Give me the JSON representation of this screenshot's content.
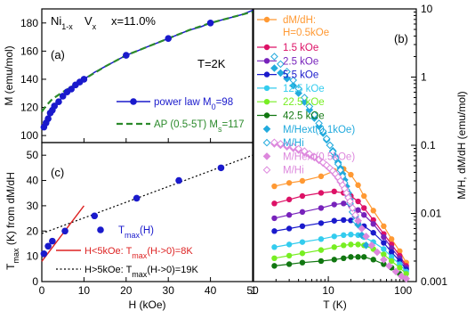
{
  "chart_data": [
    {
      "panel": "(a)",
      "type": "line",
      "material_label": {
        "base": "Ni",
        "sub1": "1-x",
        "mid": "V",
        "sub2": "x"
      },
      "composition": "x=11.0%",
      "temperature": "T=2K",
      "ylabel": "M (emu/mol)",
      "xlim": [
        0,
        50
      ],
      "ylim": [
        95,
        190
      ],
      "yticks": [
        "100",
        "120",
        "140",
        "160",
        "180"
      ],
      "grid": false,
      "legend_position": "center-right",
      "series": [
        {
          "name": "power law M",
          "name_sub": "0",
          "name_suffix": "=98",
          "color": "#1a1acc",
          "style": "line-markers",
          "x": [
            0.5,
            1.0,
            1.5,
            2.0,
            2.5,
            3.0,
            4.0,
            5.0,
            6.0,
            7.0,
            8.0,
            9.0,
            10.0,
            12.5,
            15.0,
            17.5,
            20.0,
            22.5,
            25.0,
            27.5,
            30.0,
            32.5,
            35.0,
            37.5,
            40.0,
            42.5,
            45.0,
            47.5,
            50.0
          ],
          "y": [
            106,
            109,
            112,
            116,
            118,
            121,
            124,
            128,
            131,
            133,
            136,
            138,
            140,
            145,
            149,
            153,
            157,
            160,
            163,
            166,
            169,
            172,
            175,
            177,
            180,
            182,
            184,
            186,
            189
          ]
        },
        {
          "name": "AP (0.5-5T) M",
          "name_sub": "s",
          "name_suffix": "=117",
          "color": "#2b8a2b",
          "style": "dashed",
          "x": [
            0.0,
            1.0,
            2.5,
            5.0,
            10.0,
            15.0,
            20.0,
            25.0,
            30.0,
            35.0,
            40.0,
            45.0,
            50.0
          ],
          "y": [
            117,
            121,
            126,
            131,
            140,
            149,
            157,
            163,
            169,
            175,
            180,
            184,
            188
          ]
        }
      ]
    },
    {
      "panel": "(c)",
      "type": "scatter",
      "xlabel": "H (kOe)",
      "ylabel_base": "T",
      "ylabel_sub": "max",
      "ylabel_rest": " (K) from dM/dH",
      "xlim": [
        0,
        50
      ],
      "ylim": [
        0,
        55
      ],
      "xticks": [
        "0",
        "10",
        "20",
        "30",
        "40",
        "50"
      ],
      "yticks": [
        "0",
        "10",
        "20",
        "30",
        "40",
        "50"
      ],
      "grid": false,
      "legend_position": "bottom-right",
      "points_name_base": "T",
      "points_name_sub": "max",
      "points_name_rest": "(H)",
      "points_color": "#1a1acc",
      "points": {
        "x": [
          0.5,
          1.5,
          2.5,
          5.5,
          12.5,
          22.5,
          32.5,
          42.5
        ],
        "y": [
          11,
          14,
          16,
          20,
          26,
          33,
          40,
          45
        ]
      },
      "fit_low": {
        "label_a": "H<5kOe: T",
        "label_sub": "max",
        "label_b": "(H->0)=8K",
        "color": "#dd2222",
        "x": [
          0,
          10
        ],
        "y": [
          8,
          30
        ]
      },
      "fit_high": {
        "label_a": "H>5kOe: T",
        "label_sub": "max",
        "label_b": "(H->0)=19K",
        "color": "#000000",
        "x": [
          0,
          50
        ],
        "y": [
          19,
          50
        ]
      }
    },
    {
      "panel": "(b)",
      "type": "line",
      "xlabel": "T (K)",
      "ylabel": "M/H,  dM/dH (emu/mol)",
      "x_scale": "log",
      "y_scale": "log",
      "xlim": [
        1,
        150
      ],
      "ylim": [
        0.001,
        10
      ],
      "xticks": [
        "1",
        "10",
        "100"
      ],
      "yticks": [
        "0.001",
        "0.01",
        "0.1",
        "1",
        "10"
      ],
      "grid": false,
      "legend_position": "top-left",
      "legend_header": [
        "dM/dH:",
        "H=0.5kOe"
      ],
      "series": [
        {
          "name": "",
          "color": "#ff9933",
          "marker": "circle",
          "x": [
            1.9,
            3.0,
            4.5,
            8.0,
            12.0,
            16.0,
            20.0,
            25.0,
            30.0,
            40.0,
            55.0,
            70.0,
            90.0,
            110.0
          ],
          "y": [
            0.025,
            0.028,
            0.03,
            0.035,
            0.042,
            0.045,
            0.037,
            0.026,
            0.018,
            0.011,
            0.0065,
            0.0042,
            0.0028,
            0.0019
          ]
        },
        {
          "name": "1.5 kOe",
          "color": "#dd1166",
          "marker": "circle",
          "x": [
            1.9,
            3.0,
            4.5,
            8.0,
            12.0,
            16.0,
            20.0,
            25.0,
            30.0,
            40.0,
            55.0,
            70.0,
            90.0,
            110.0
          ],
          "y": [
            0.014,
            0.016,
            0.018,
            0.02,
            0.021,
            0.02,
            0.018,
            0.015,
            0.012,
            0.008,
            0.005,
            0.0035,
            0.0024,
            0.0017
          ]
        },
        {
          "name": "2.5 kOe",
          "color": "#7722bb",
          "marker": "circle",
          "x": [
            1.9,
            3.0,
            4.5,
            8.0,
            12.0,
            16.0,
            20.0,
            25.0,
            30.0,
            40.0,
            55.0,
            70.0,
            90.0,
            110.0
          ],
          "y": [
            0.0085,
            0.0095,
            0.0105,
            0.012,
            0.0135,
            0.014,
            0.013,
            0.0112,
            0.0095,
            0.007,
            0.0045,
            0.0031,
            0.0022,
            0.0016
          ]
        },
        {
          "name": "5.5 kOe",
          "color": "#1a1acc",
          "marker": "circle",
          "x": [
            1.9,
            3.0,
            4.5,
            8.0,
            12.0,
            16.0,
            20.0,
            25.0,
            30.0,
            40.0,
            55.0,
            70.0,
            90.0,
            110.0
          ],
          "y": [
            0.0055,
            0.006,
            0.0065,
            0.0072,
            0.0078,
            0.008,
            0.0079,
            0.0072,
            0.0065,
            0.0052,
            0.0037,
            0.0027,
            0.002,
            0.0015
          ]
        },
        {
          "name": "12.5 kOe",
          "color": "#33ccee",
          "marker": "circle",
          "x": [
            1.9,
            3.0,
            4.5,
            8.0,
            12.0,
            16.0,
            20.0,
            25.0,
            30.0,
            40.0,
            55.0,
            70.0,
            90.0,
            110.0
          ],
          "y": [
            0.0032,
            0.0035,
            0.0038,
            0.0042,
            0.0046,
            0.0048,
            0.0049,
            0.0048,
            0.0045,
            0.0038,
            0.003,
            0.0023,
            0.0018,
            0.0014
          ]
        },
        {
          "name": "22.5 kOe",
          "color": "#77ee22",
          "marker": "circle",
          "x": [
            1.9,
            3.0,
            4.5,
            8.0,
            12.0,
            16.0,
            20.0,
            25.0,
            30.0,
            40.0,
            55.0,
            70.0,
            90.0,
            110.0
          ],
          "y": [
            0.0022,
            0.0024,
            0.0026,
            0.0029,
            0.0032,
            0.0034,
            0.0035,
            0.0035,
            0.0034,
            0.003,
            0.0025,
            0.002,
            0.0016,
            0.0013
          ]
        },
        {
          "name": "42.5 kOe",
          "color": "#117711",
          "marker": "circle",
          "x": [
            1.9,
            3.0,
            4.5,
            8.0,
            12.0,
            16.0,
            20.0,
            25.0,
            30.0,
            40.0,
            55.0,
            70.0,
            90.0,
            110.0
          ],
          "y": [
            0.0017,
            0.0018,
            0.0019,
            0.002,
            0.0021,
            0.0022,
            0.0023,
            0.0023,
            0.0023,
            0.0021,
            0.0018,
            0.0016,
            0.0013,
            0.0011
          ]
        },
        {
          "name": "M/Hext(0.1kOe)",
          "color": "#22aadd",
          "marker": "diamond",
          "x": [
            1.9,
            2.3,
            2.8,
            3.4,
            4.0,
            4.8,
            5.6,
            6.5,
            7.5,
            8.5,
            9.5,
            10.5,
            11.5,
            12.5,
            13.5,
            14.5,
            15.5,
            16.5,
            17.5,
            18.5,
            19.5,
            21.0,
            23.0,
            25.0,
            28.0,
            32.0
          ],
          "y": [
            1.35,
            1.15,
            0.95,
            0.75,
            0.58,
            0.43,
            0.33,
            0.25,
            0.19,
            0.15,
            0.12,
            0.1,
            0.083,
            0.068,
            0.056,
            0.046,
            0.038,
            0.031,
            0.025,
            0.02,
            0.016,
            0.012,
            0.009,
            0.0068,
            0.0048,
            0.0034
          ]
        },
        {
          "name": "M/Hi",
          "color": "#22aadd",
          "marker": "diamond-open",
          "x": [
            1.9,
            2.3,
            2.8,
            3.4,
            4.0,
            4.8,
            5.6,
            6.5,
            7.5,
            8.5,
            9.5,
            10.5,
            11.5,
            12.5,
            13.5,
            14.5,
            15.5,
            16.5,
            17.5,
            18.5,
            19.5,
            21.0,
            23.0
          ],
          "y": [
            2.0,
            1.55,
            1.2,
            0.9,
            0.68,
            0.5,
            0.37,
            0.28,
            0.21,
            0.16,
            0.125,
            0.1,
            0.08,
            0.065,
            0.053,
            0.043,
            0.035,
            0.028,
            0.022,
            0.018,
            0.014,
            0.0105,
            0.0078
          ]
        },
        {
          "name": "M/Hext(0.5kOe)",
          "color": "#dd88dd",
          "marker": "diamond",
          "x": [
            1.9,
            2.3,
            2.8,
            3.4,
            4.0,
            4.8,
            5.6,
            6.5,
            7.5,
            8.5,
            9.5,
            10.5,
            11.5,
            12.5,
            13.5,
            14.5,
            15.5,
            16.5,
            17.5,
            18.5,
            19.5,
            21.0,
            23.0,
            25.0,
            28.0,
            32.0,
            38.0,
            45.0,
            55.0,
            65.0,
            80.0,
            95.0,
            110.0
          ],
          "y": [
            0.105,
            0.1,
            0.095,
            0.09,
            0.085,
            0.078,
            0.072,
            0.066,
            0.06,
            0.055,
            0.05,
            0.045,
            0.041,
            0.037,
            0.033,
            0.029,
            0.026,
            0.023,
            0.02,
            0.017,
            0.015,
            0.012,
            0.0095,
            0.0078,
            0.006,
            0.0046,
            0.0034,
            0.0027,
            0.0021,
            0.0017,
            0.0014,
            0.0012,
            0.0011
          ]
        },
        {
          "name": "M/Hi",
          "color": "#dd88dd",
          "marker": "diamond-open",
          "x": [
            1.9,
            2.3,
            2.8,
            3.4,
            4.0,
            4.8,
            5.6,
            6.5,
            7.5,
            8.5,
            9.5,
            10.5,
            11.5,
            12.5,
            13.5,
            14.5,
            15.5,
            16.5,
            17.5,
            18.5,
            19.5,
            21.0,
            23.0
          ],
          "y": [
            0.11,
            0.105,
            0.1,
            0.095,
            0.089,
            0.082,
            0.075,
            0.068,
            0.062,
            0.056,
            0.051,
            0.046,
            0.042,
            0.038,
            0.034,
            0.03,
            0.026,
            0.023,
            0.02,
            0.017,
            0.015,
            0.012,
            0.0095
          ]
        }
      ]
    }
  ]
}
